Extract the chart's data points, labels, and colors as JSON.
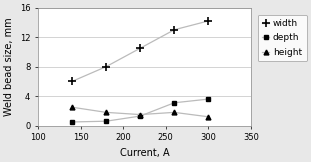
{
  "current": [
    140,
    180,
    220,
    260,
    300
  ],
  "width": [
    6.0,
    8.0,
    10.5,
    13.0,
    14.2
  ],
  "depth": [
    0.5,
    0.6,
    1.3,
    3.1,
    3.6
  ],
  "height": [
    2.5,
    1.8,
    1.5,
    1.8,
    1.2
  ],
  "xlabel": "Current, A",
  "ylabel": "Weld bead size, mm",
  "xlim": [
    100,
    350
  ],
  "ylim": [
    0,
    16
  ],
  "xticks": [
    100,
    150,
    200,
    250,
    300,
    350
  ],
  "yticks": [
    0,
    4,
    8,
    12,
    16
  ],
  "line_color": "#bbbbbb",
  "marker_color": "black",
  "bg_color": "#ffffff",
  "fig_bg_color": "#e8e8e8",
  "legend_labels": [
    "width",
    "depth",
    "height"
  ],
  "label_fontsize": 7,
  "tick_fontsize": 6,
  "legend_fontsize": 6.5
}
